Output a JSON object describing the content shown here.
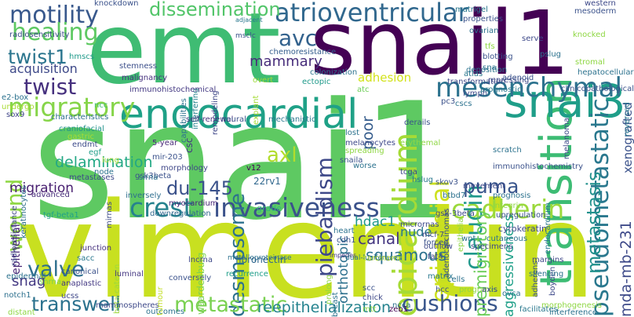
{
  "words": [
    {
      "text": "snai1",
      "color": "#5ec962"
    },
    {
      "text": "vimentin",
      "color": "#c8e020"
    },
    {
      "text": "emt",
      "color": "#3fbc73"
    },
    {
      "text": "snail1",
      "color": "#440154"
    },
    {
      "text": "endocardial",
      "color": "#1fa187"
    },
    {
      "text": "transition",
      "color": "#3dbc74"
    },
    {
      "text": "snai3",
      "color": "#1f9e89"
    },
    {
      "text": "pseudometastatic",
      "color": "#2a788e"
    },
    {
      "text": "mesenchymal",
      "color": "#2c728e"
    },
    {
      "text": "epicardium",
      "color": "#a5db36"
    },
    {
      "text": "crest",
      "color": "#26828e"
    },
    {
      "text": "invasiveness",
      "color": "#3b528b"
    },
    {
      "text": "cadherin",
      "color": "#9bd93c"
    },
    {
      "text": "atrioventricular",
      "color": "#31688e"
    },
    {
      "text": "dissemination",
      "color": "#52c569"
    },
    {
      "text": "migratory",
      "color": "#86d549"
    },
    {
      "text": "piebaldism",
      "color": "#3e4989"
    },
    {
      "text": "desmosome",
      "color": "#2c718e"
    },
    {
      "text": "claudin",
      "color": "#1f988b"
    },
    {
      "text": "epicardial",
      "color": "#cde11d"
    },
    {
      "text": "motility",
      "color": "#38588c"
    },
    {
      "text": "healing",
      "color": "#5ec962"
    },
    {
      "text": "twist1",
      "color": "#2b758e"
    },
    {
      "text": "twist",
      "color": "#46307e"
    },
    {
      "text": "wound",
      "color": "#8fd744"
    },
    {
      "text": "valve",
      "color": "#2e6f8e"
    },
    {
      "text": "avc",
      "color": "#33628d"
    },
    {
      "text": "axl",
      "color": "#b2dd2d"
    },
    {
      "text": "puma",
      "color": "#39558c"
    },
    {
      "text": "cushions",
      "color": "#39568c"
    },
    {
      "text": "transwell",
      "color": "#2c728e"
    },
    {
      "text": "metastatic",
      "color": "#7ad151"
    },
    {
      "text": "reepithelialization",
      "color": "#25838e"
    },
    {
      "text": "mammary",
      "color": "#472d7b"
    },
    {
      "text": "delamination",
      "color": "#22a884"
    },
    {
      "text": "migration",
      "color": "#481f70"
    },
    {
      "text": "squamous",
      "color": "#2c728e"
    },
    {
      "text": "canal",
      "color": "#453781"
    },
    {
      "text": "hdac1",
      "color": "#1f978b"
    },
    {
      "text": "nude",
      "color": "#2a778e"
    },
    {
      "text": "metastasis",
      "color": "#21918c"
    },
    {
      "text": "du-145",
      "color": "#3b528b"
    },
    {
      "text": "premigratory",
      "color": "#6ccd5a"
    },
    {
      "text": "aggressiveness",
      "color": "#1fa088"
    },
    {
      "text": "mda-mb-231",
      "color": "#3e4a89"
    },
    {
      "text": "xenografted",
      "color": "#3b528b"
    },
    {
      "text": "acquisition",
      "color": "#3e4989"
    },
    {
      "text": "orthotopic",
      "color": "#2d708e"
    },
    {
      "text": "poor",
      "color": "#365d8d"
    },
    {
      "text": "adhesion",
      "color": "#d2e21b"
    },
    {
      "text": "snag",
      "color": "#443983"
    },
    {
      "text": "epithelial",
      "color": "#482576"
    },
    {
      "text": "knockdown",
      "color": "#3b528b"
    },
    {
      "text": "radiosensitivity",
      "color": "#3d4d8a"
    },
    {
      "text": "hmscs",
      "color": "#1f9a8a"
    },
    {
      "text": "e2-box",
      "color": "#2c728e"
    },
    {
      "text": "undergo",
      "color": "#a8db34"
    },
    {
      "text": "sox9",
      "color": "#404688"
    },
    {
      "text": "radioresistance",
      "color": "#3f4788"
    },
    {
      "text": "keratinocytes",
      "color": "#2e6f8e"
    },
    {
      "text": "advanced",
      "color": "#472c7a"
    },
    {
      "text": "tgf-beta1",
      "color": "#1fa188"
    },
    {
      "text": "ncc",
      "color": "#3fbc73"
    },
    {
      "text": "malignancy",
      "color": "#46327e"
    },
    {
      "text": "stemness",
      "color": "#3c4f8a"
    },
    {
      "text": "capabilities",
      "color": "#2c728e"
    },
    {
      "text": "interfering",
      "color": "#26828e"
    },
    {
      "text": "remodeling",
      "color": "#3f4788"
    },
    {
      "text": "overt",
      "color": "#9dd93b"
    },
    {
      "text": "explant",
      "color": "#a5db36"
    },
    {
      "text": "adjacent",
      "color": "#2a788e"
    },
    {
      "text": "msclc",
      "color": "#3b528b"
    },
    {
      "text": "chemoresistance",
      "color": "#355e8d"
    },
    {
      "text": "colonization",
      "color": "#2c728e"
    },
    {
      "text": "ectopic",
      "color": "#1f9a8a"
    },
    {
      "text": "atc",
      "color": "#6ece58"
    },
    {
      "text": "immunohistochemical",
      "color": "#443983"
    },
    {
      "text": "characteristics",
      "color": "#2e6e8e"
    },
    {
      "text": "self-renewal",
      "color": "#46327e"
    },
    {
      "text": "neural",
      "color": "#3b528b"
    },
    {
      "text": "mechanistic",
      "color": "#2a788e"
    },
    {
      "text": "craniofacial",
      "color": "#20928c"
    },
    {
      "text": "gastric",
      "color": "#a8db34"
    },
    {
      "text": "endmt",
      "color": "#3e4c8a"
    },
    {
      "text": "metastases",
      "color": "#3e4a89"
    },
    {
      "text": "egf",
      "color": "#1f9e89"
    },
    {
      "text": "node",
      "color": "#2c728e"
    },
    {
      "text": "lung",
      "color": "#a2da37"
    },
    {
      "text": "gsk3beta",
      "color": "#3b528b"
    },
    {
      "text": "5-year",
      "color": "#482878"
    },
    {
      "text": "mir-203",
      "color": "#3b528b"
    },
    {
      "text": "morphology",
      "color": "#3f4788"
    },
    {
      "text": "sirna",
      "color": "#2c728e"
    },
    {
      "text": "inversely",
      "color": "#2e6e8e"
    },
    {
      "text": "csc",
      "color": "#443a83"
    },
    {
      "text": "v12",
      "color": "#440154"
    },
    {
      "text": "22rv1",
      "color": "#31688e"
    },
    {
      "text": "grade",
      "color": "#35b779"
    },
    {
      "text": "myocardium",
      "color": "#482878"
    },
    {
      "text": "downregulation",
      "color": "#31688e"
    },
    {
      "text": "mirnas",
      "color": "#3e4989"
    },
    {
      "text": "junction",
      "color": "#46317e"
    },
    {
      "text": "sacc",
      "color": "#2a788e"
    },
    {
      "text": "shrna",
      "color": "#7ad151"
    },
    {
      "text": "canonical",
      "color": "#3b528b"
    },
    {
      "text": "anaplastic",
      "color": "#443983"
    },
    {
      "text": "ucss",
      "color": "#3f4788"
    },
    {
      "text": "epidermal",
      "color": "#2c728e"
    },
    {
      "text": "notch1",
      "color": "#2d708e"
    },
    {
      "text": "distant",
      "color": "#8fd744"
    },
    {
      "text": "mammospheres",
      "color": "#3e4989"
    },
    {
      "text": "outcomes",
      "color": "#2c728e"
    },
    {
      "text": "beta-catenin",
      "color": "#9dd93b"
    },
    {
      "text": "tumour",
      "color": "#c2df23"
    },
    {
      "text": "luminal",
      "color": "#453882"
    },
    {
      "text": "conversely",
      "color": "#3b528b"
    },
    {
      "text": "waardenburg",
      "color": "#7ad151"
    },
    {
      "text": "lncrna",
      "color": "#3e4a89"
    },
    {
      "text": "metalloproteinase",
      "color": "#2c728e"
    },
    {
      "text": "recurrence",
      "color": "#1f9e89"
    },
    {
      "text": "impedes",
      "color": "#453781"
    },
    {
      "text": "dual-luciferase",
      "color": "#2c728e"
    },
    {
      "text": "carcinoma",
      "color": "#bddf26"
    },
    {
      "text": "mcf-7",
      "color": "#3e4a89"
    },
    {
      "text": "fibronectin",
      "color": "#31688e"
    },
    {
      "text": "prolong",
      "color": "#8fd744"
    },
    {
      "text": "breast",
      "color": "#2c728e"
    },
    {
      "text": "scc",
      "color": "#3b528b"
    },
    {
      "text": "chick",
      "color": "#3e4989"
    },
    {
      "text": "mtt",
      "color": "#8fd744"
    },
    {
      "text": "zeb1",
      "color": "#440154"
    },
    {
      "text": "ncca",
      "color": "#2c728e"
    },
    {
      "text": "outflow",
      "color": "#3e4989"
    },
    {
      "text": "forced",
      "color": "#3b528b"
    },
    {
      "text": "fat4",
      "color": "#3f4788"
    },
    {
      "text": "matrix",
      "color": "#2a788e"
    },
    {
      "text": "hcc",
      "color": "#3b528b"
    },
    {
      "text": "cells",
      "color": "#2c728e"
    },
    {
      "text": "programs",
      "color": "#8fd744"
    },
    {
      "text": "axis",
      "color": "#3e4989"
    },
    {
      "text": "ovca",
      "color": "#2c728e"
    },
    {
      "text": "facilitates",
      "color": "#2a788e"
    },
    {
      "text": "morphogenesis",
      "color": "#8fd744"
    },
    {
      "text": "interference",
      "color": "#2c728e"
    },
    {
      "text": "boyden",
      "color": "#3e4989"
    },
    {
      "text": "adherens",
      "color": "#3b528b"
    },
    {
      "text": "silencing",
      "color": "#2c728e"
    },
    {
      "text": "margins",
      "color": "#3f4788"
    },
    {
      "text": "cutaneous",
      "color": "#2c728e"
    },
    {
      "text": "cytokeratin",
      "color": "#3e4989"
    },
    {
      "text": "endocardium",
      "color": "#2a788e"
    },
    {
      "text": "upregulation",
      "color": "#3b528b"
    },
    {
      "text": "integrin",
      "color": "#8fd744"
    },
    {
      "text": "prognosis",
      "color": "#2c728e"
    },
    {
      "text": "movement",
      "color": "#3e4989"
    },
    {
      "text": "immunohistochemistry",
      "color": "#3b528b"
    },
    {
      "text": "scratch",
      "color": "#2c728e"
    },
    {
      "text": "melanoma",
      "color": "#3e4989"
    },
    {
      "text": "reversed",
      "color": "#2a788e"
    },
    {
      "text": "clinicopathological",
      "color": "#3b528b"
    },
    {
      "text": "hepatocellular",
      "color": "#2c728e"
    },
    {
      "text": "stromal",
      "color": "#8fd744"
    },
    {
      "text": "lymph",
      "color": "#3e4989"
    },
    {
      "text": "pc3",
      "color": "#3b528b"
    },
    {
      "text": "cscs",
      "color": "#2c728e"
    },
    {
      "text": "transformation",
      "color": "#3e4989"
    },
    {
      "text": "atlas",
      "color": "#2a788e"
    },
    {
      "text": "deposition",
      "color": "#2c728e"
    },
    {
      "text": "derails",
      "color": "#3b528b"
    },
    {
      "text": "erythemal",
      "color": "#8fd744"
    },
    {
      "text": "lost",
      "color": "#2c728e"
    },
    {
      "text": "melanocytes",
      "color": "#3e4989"
    },
    {
      "text": "spreading",
      "color": "#8fd744"
    },
    {
      "text": "snaila",
      "color": "#3b528b"
    },
    {
      "text": "worse",
      "color": "#2c728e"
    },
    {
      "text": "tcga",
      "color": "#3e4989"
    },
    {
      "text": "hslug",
      "color": "#2a788e"
    },
    {
      "text": "skov3",
      "color": "#3b528b"
    },
    {
      "text": "btbd7",
      "color": "#2c728e"
    },
    {
      "text": "gsk-3beta",
      "color": "#3e4989"
    },
    {
      "text": "adenocarcinomas",
      "color": "#3b528b"
    },
    {
      "text": "epithelia",
      "color": "#8fd744"
    },
    {
      "text": "wnt",
      "color": "#2c728e"
    },
    {
      "text": "specimens",
      "color": "#3e4989"
    },
    {
      "text": "cdh1",
      "color": "#3b528b"
    },
    {
      "text": "heart",
      "color": "#2c728e"
    },
    {
      "text": "micrornas",
      "color": "#3e4989"
    },
    {
      "text": "matrigel",
      "color": "#2a788e"
    },
    {
      "text": "properties",
      "color": "#3b528b"
    },
    {
      "text": "ovarian",
      "color": "#2c728e"
    },
    {
      "text": "serve",
      "color": "#3e4989"
    },
    {
      "text": "tfs",
      "color": "#8fd744"
    },
    {
      "text": "blotting",
      "color": "#3b528b"
    },
    {
      "text": "sna",
      "color": "#2c728e"
    },
    {
      "text": "repressing",
      "color": "#3e4989"
    },
    {
      "text": "prognostic",
      "color": "#2a788e"
    },
    {
      "text": "adenoid",
      "color": "#3b528b"
    },
    {
      "text": "pslug",
      "color": "#2c728e"
    },
    {
      "text": "knocked",
      "color": "#8fd744"
    },
    {
      "text": "western",
      "color": "#3e4989"
    },
    {
      "text": "mesoderm",
      "color": "#3b528b"
    }
  ]
}
